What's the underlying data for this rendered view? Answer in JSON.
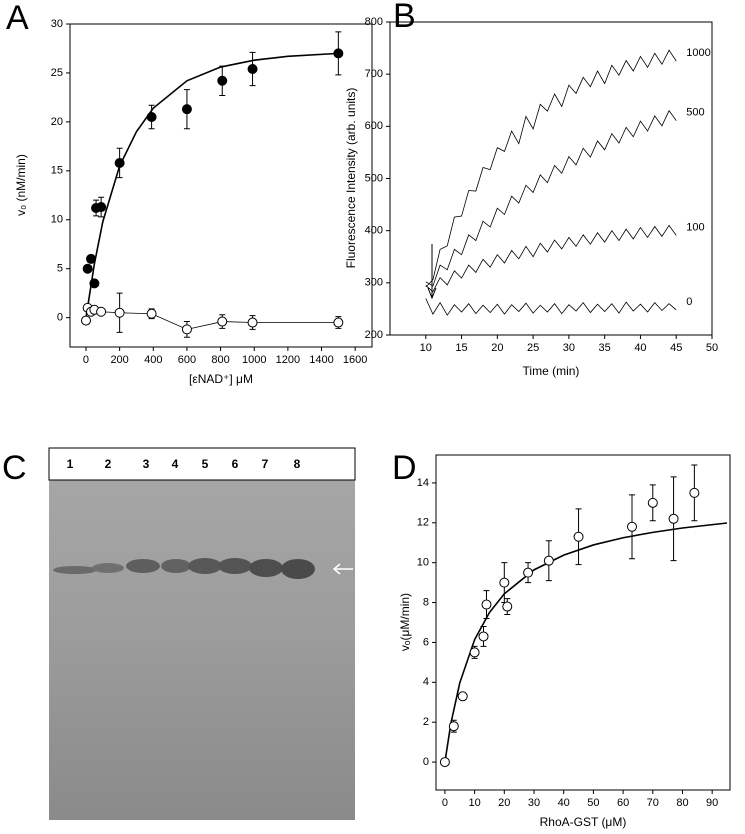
{
  "chart_data": [
    {
      "type": "scatter",
      "label": "A",
      "ylabel": "v₀ (nM/min)",
      "xlabel": "[εNAD⁺] μM",
      "xlim": [
        -95,
        1700
      ],
      "xticks": [
        0,
        200,
        400,
        600,
        800,
        1000,
        1200,
        1400,
        1600
      ],
      "ylim": [
        -3,
        30
      ],
      "yticks": [
        0,
        5,
        10,
        15,
        20,
        25,
        30
      ],
      "series": [
        {
          "color": "#000000",
          "marker": "filled",
          "connect": false,
          "x": [
            10,
            30,
            50,
            60,
            90,
            200,
            390,
            600,
            810,
            990,
            1500
          ],
          "values": [
            5,
            6,
            3.5,
            11.2,
            11.3,
            15.8,
            20.5,
            21.3,
            24.2,
            25.4,
            27
          ],
          "errors": [
            null,
            null,
            null,
            0.8,
            1,
            1.5,
            1.2,
            2,
            1.5,
            1.7,
            2.2
          ]
        },
        {
          "color": "#000000",
          "marker": "open",
          "connect": true,
          "x": [
            0,
            10,
            30,
            50,
            90,
            200,
            390,
            600,
            810,
            990,
            1500
          ],
          "values": [
            -0.3,
            1,
            0.6,
            0.8,
            0.6,
            0.5,
            0.4,
            -1.2,
            -0.4,
            -0.5,
            -0.5
          ],
          "errors": [
            null,
            null,
            null,
            null,
            null,
            2,
            0.5,
            0.8,
            0.7,
            0.7,
            0.6
          ]
        }
      ],
      "fit": {
        "color": "#000000",
        "x": [
          0,
          50,
          100,
          200,
          300,
          400,
          600,
          800,
          1000,
          1200,
          1500
        ],
        "values": [
          0,
          5.5,
          9.8,
          15.5,
          19,
          21.4,
          24.2,
          25.6,
          26.3,
          26.7,
          27
        ]
      }
    },
    {
      "type": "line",
      "label": "B",
      "ylabel": "Fluorescence Intensity (arb. units)",
      "xlabel": "Time (min)",
      "xlim": [
        5,
        50
      ],
      "xticks": [
        10,
        15,
        20,
        25,
        30,
        35,
        40,
        45,
        50
      ],
      "ylim": [
        200,
        800
      ],
      "yticks": [
        200,
        300,
        400,
        500,
        600,
        700,
        800
      ],
      "x": [
        10,
        11,
        12,
        13,
        14,
        15,
        16,
        17,
        18,
        19,
        20,
        21,
        22,
        23,
        24,
        25,
        26,
        27,
        28,
        29,
        30,
        31,
        32,
        33,
        34,
        35,
        36,
        37,
        38,
        39,
        40,
        41,
        42,
        43,
        44,
        45
      ],
      "series": [
        {
          "name": "1000",
          "color": "#000000",
          "values": [
            292,
            306,
            364,
            371,
            426,
            428,
            477,
            476,
            521,
            517,
            559,
            552,
            591,
            567,
            619,
            595,
            642,
            629,
            662,
            638,
            679,
            663,
            694,
            676,
            706,
            682,
            717,
            698,
            726,
            706,
            734,
            713,
            740,
            719,
            746,
            725
          ]
        },
        {
          "name": "500",
          "color": "#000000",
          "values": [
            302,
            294,
            334,
            325,
            364,
            354,
            392,
            381,
            418,
            407,
            443,
            431,
            466,
            453,
            487,
            473,
            507,
            492,
            525,
            510,
            542,
            526,
            558,
            541,
            572,
            555,
            586,
            568,
            598,
            580,
            610,
            591,
            620,
            601,
            630,
            611
          ]
        },
        {
          "name": "100",
          "color": "#000000",
          "values": [
            295,
            283,
            310,
            296,
            323,
            309,
            334,
            320,
            345,
            330,
            354,
            338,
            362,
            346,
            370,
            350,
            376,
            359,
            382,
            365,
            387,
            370,
            392,
            374,
            396,
            378,
            400,
            381,
            403,
            384,
            406,
            387,
            408,
            389,
            410,
            391
          ]
        },
        {
          "name": "0",
          "color": "#000000",
          "values": [
            270,
            240,
            262,
            238,
            258,
            244,
            260,
            241,
            257,
            243,
            259,
            240,
            258,
            245,
            261,
            242,
            257,
            244,
            260,
            241,
            258,
            246,
            262,
            243,
            259,
            245,
            260,
            242,
            263,
            246,
            259,
            244,
            262,
            247,
            260,
            248
          ]
        }
      ]
    },
    {
      "type": "scatter",
      "label": "D",
      "ylabel": "vₒ(μM/min)",
      "xlabel": "RhoA-GST (μM)",
      "xlim": [
        -3,
        96
      ],
      "xticks": [
        0,
        10,
        20,
        30,
        40,
        50,
        60,
        70,
        80,
        90
      ],
      "ylim": [
        -1.4,
        15.4
      ],
      "yticks": [
        0,
        2,
        4,
        6,
        8,
        10,
        12,
        14
      ],
      "series": [
        {
          "color": "#000000",
          "marker": "open",
          "connect": false,
          "x": [
            0,
            3,
            6,
            10,
            13,
            14,
            20,
            21,
            28,
            35,
            45,
            63,
            70,
            77,
            84
          ],
          "values": [
            0,
            1.8,
            3.3,
            5.5,
            6.3,
            7.9,
            9,
            7.8,
            9.5,
            10.1,
            11.3,
            11.8,
            13,
            12.2,
            13.5
          ],
          "errors": [
            null,
            0.3,
            null,
            0.3,
            0.5,
            0.7,
            1,
            0.4,
            0.5,
            1,
            1.4,
            1.6,
            0.9,
            2.1,
            1.4
          ]
        }
      ],
      "fit": {
        "color": "#000000",
        "x": [
          0,
          2,
          5,
          10,
          15,
          20,
          30,
          40,
          50,
          60,
          70,
          80,
          95
        ],
        "values": [
          0,
          1.93,
          3.97,
          6.14,
          7.5,
          8.44,
          9.64,
          10.38,
          10.89,
          11.25,
          11.52,
          11.74,
          11.99
        ]
      }
    }
  ],
  "gel": {
    "label": "C",
    "lanes": [
      "1",
      "2",
      "3",
      "4",
      "5",
      "6",
      "7",
      "8"
    ]
  }
}
